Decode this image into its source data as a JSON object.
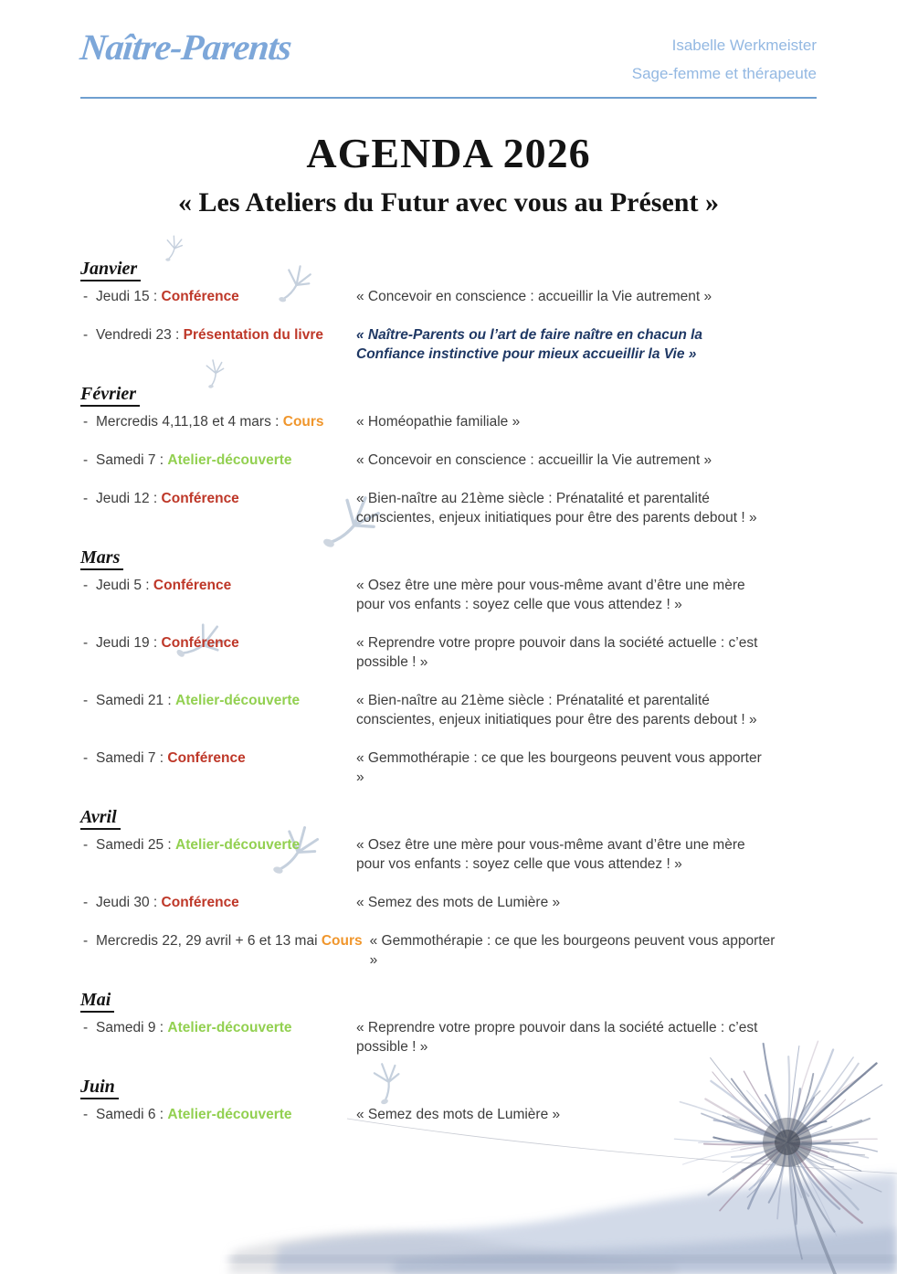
{
  "page": {
    "bullet": "-"
  },
  "header": {
    "logo": "Naître-Parents",
    "contact_name": "Isabelle Werkmeister",
    "contact_role": "Sage-femme et thérapeute"
  },
  "title": "AGENDA 2026",
  "subtitle": "« Les Ateliers du Futur avec vous au Présent »",
  "colors": {
    "logo_blue": "#7da7d9",
    "header_blue": "#93b8e2",
    "divider_blue": "#6f9fd0",
    "body_text": "#3d3d3d",
    "conference_red": "#be3728",
    "cours_orange": "#f0962c",
    "atelier_green": "#92d050",
    "book_navy": "#1f3864"
  },
  "months": [
    {
      "name": "Janvier",
      "events": [
        {
          "date": "Jeudi 15 :",
          "type": "Conférence",
          "type_color": "red",
          "desc": "« Concevoir en conscience : accueillir la Vie autrement »"
        },
        {
          "date": "Vendredi 23 :",
          "type": "Présentation du livre",
          "type_color": "red",
          "desc": "« Naître-Parents ou l’art de faire naître en chacun la Confiance instinctive pour mieux accueillir la Vie »",
          "desc_style": "book"
        }
      ]
    },
    {
      "name": "Février",
      "events": [
        {
          "date": "Mercredis 4,11,18 et 4 mars :",
          "type": "Cours",
          "type_color": "orange",
          "desc": "« Homéopathie familiale »"
        },
        {
          "date": "Samedi 7 :",
          "type": "Atelier-découverte",
          "type_color": "green",
          "desc": "« Concevoir en conscience : accueillir la Vie autrement »"
        },
        {
          "date": "Jeudi 12 :",
          "type": "Conférence",
          "type_color": "red",
          "desc": "« Bien-naître au 21ème siècle : Prénatalité et parentalité conscientes, enjeux initiatiques pour être des parents debout ! »"
        }
      ]
    },
    {
      "name": "Mars",
      "events": [
        {
          "date": "Jeudi 5 :",
          "type": "Conférence",
          "type_color": "red",
          "desc": "« Osez être une mère pour vous-même avant d’être une mère pour vos enfants : soyez celle que vous attendez ! »"
        },
        {
          "date": "Jeudi 19 :",
          "type": "Conférence",
          "type_color": "red",
          "desc": "« Reprendre votre propre pouvoir dans la société actuelle : c’est possible ! »"
        },
        {
          "date": "Samedi 21 :",
          "type": "Atelier-découverte",
          "type_color": "green",
          "desc": "« Bien-naître au 21ème siècle : Prénatalité et parentalité conscientes, enjeux initiatiques pour être des parents debout ! »"
        },
        {
          "date": "Samedi 7 :",
          "type": "Conférence",
          "type_color": "red",
          "desc": "« Gemmothérapie : ce que les bourgeons peuvent vous apporter »"
        }
      ]
    },
    {
      "name": "Avril",
      "events": [
        {
          "date": "Samedi 25 :",
          "type": "Atelier-découverte",
          "type_color": "green",
          "desc": "« Osez être une mère pour vous-même avant d’être une mère pour vos enfants : soyez celle que vous attendez ! »"
        },
        {
          "date": "Jeudi 30 :",
          "type": "Conférence",
          "type_color": "red",
          "desc": "« Semez des mots de Lumière »"
        },
        {
          "date": "Mercredis 22, 29 avril + 6 et 13 mai",
          "type": "Cours",
          "type_color": "orange",
          "desc": "« Gemmothérapie : ce que les bourgeons peuvent vous apporter »"
        }
      ]
    },
    {
      "name": "Mai",
      "events": [
        {
          "date": "Samedi 9 :",
          "type": "Atelier-découverte",
          "type_color": "green",
          "desc": "« Reprendre votre propre pouvoir dans la société actuelle : c’est possible ! »"
        }
      ]
    },
    {
      "name": "Juin",
      "events": [
        {
          "date": "Samedi 6 :",
          "type": "Atelier-découverte",
          "type_color": "green",
          "desc": "« Semez des mots de Lumière »"
        }
      ]
    }
  ]
}
